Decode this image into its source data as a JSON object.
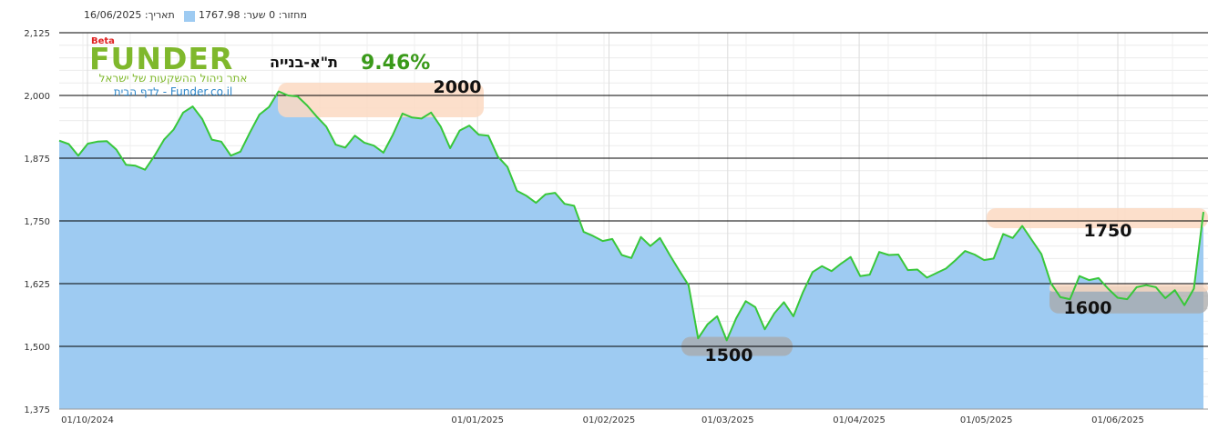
{
  "header": {
    "date_label": "תאריך: 16/06/2025",
    "volume_label": "מחזור: 0 שער: 1767.98",
    "legend_color": "#9ecbf2"
  },
  "logo": {
    "beta": "Beta",
    "brand": "FUNDER",
    "tagline": "אתר ניהול ההשקעות של ישראל",
    "site": "Funder.co.il - לדף הבית"
  },
  "instrument": {
    "name": "ת\"א-בנייה",
    "change": "9.46%"
  },
  "colors": {
    "area_fill": "#9ecbf2",
    "line": "#38c73a",
    "band_orange": "#fbd9c2",
    "band_gray": "#a8a8a8"
  },
  "chart_data": {
    "type": "area",
    "title": "",
    "xlabel": "",
    "ylabel": "",
    "ylim": [
      1375,
      2125
    ],
    "grid": true,
    "yticks": [
      "1,375",
      "1,500",
      "1,625",
      "1,750",
      "1,875",
      "2,000",
      "2,125"
    ],
    "xticks": [
      {
        "label": "01/10/2024",
        "date": "2024-10-01"
      },
      {
        "label": "01/01/2025",
        "date": "2025-01-01"
      },
      {
        "label": "01/02/2025",
        "date": "2025-02-01"
      },
      {
        "label": "01/03/2025",
        "date": "2025-03-01"
      },
      {
        "label": "01/04/2025",
        "date": "2025-04-01"
      },
      {
        "label": "01/05/2025",
        "date": "2025-05-01"
      },
      {
        "label": "01/06/2025",
        "date": "2025-06-01"
      }
    ],
    "series": [
      {
        "values": [
          1910,
          1903,
          1880,
          1904,
          1908,
          1909,
          1892,
          1862,
          1860,
          1852,
          1880,
          1912,
          1932,
          1966,
          1978,
          1953,
          1912,
          1908,
          1880,
          1888,
          1926,
          1962,
          1977,
          2008,
          2000,
          1998,
          1980,
          1958,
          1938,
          1902,
          1896,
          1920,
          1906,
          1900,
          1886,
          1922,
          1964,
          1956,
          1954,
          1966,
          1938,
          1895,
          1930,
          1940,
          1922,
          1920,
          1878,
          1858,
          1810,
          1800,
          1786,
          1803,
          1806,
          1784,
          1780,
          1728,
          1720,
          1710,
          1714,
          1682,
          1676,
          1718,
          1700,
          1716,
          1683,
          1652,
          1622,
          1516,
          1544,
          1560,
          1512,
          1556,
          1590,
          1578,
          1534,
          1566,
          1588,
          1560,
          1608,
          1648,
          1660,
          1650,
          1665,
          1678,
          1640,
          1643,
          1688,
          1682,
          1683,
          1652,
          1653,
          1637,
          1646,
          1655,
          1672,
          1690,
          1683,
          1672,
          1675,
          1724,
          1716,
          1740,
          1712,
          1684,
          1626,
          1598,
          1594,
          1640,
          1632,
          1636,
          1615,
          1597,
          1594,
          1618,
          1622,
          1618,
          1596,
          1612,
          1582,
          1615,
          1768
        ]
      }
    ],
    "annotations": [
      {
        "label": "2000",
        "band": "orange",
        "value": 2000
      },
      {
        "label": "1750",
        "band": "orange",
        "value": 1750
      },
      {
        "label": "1600",
        "band": "gray",
        "value": 1600
      },
      {
        "label": "1500",
        "band": "gray",
        "value": 1500
      }
    ]
  }
}
